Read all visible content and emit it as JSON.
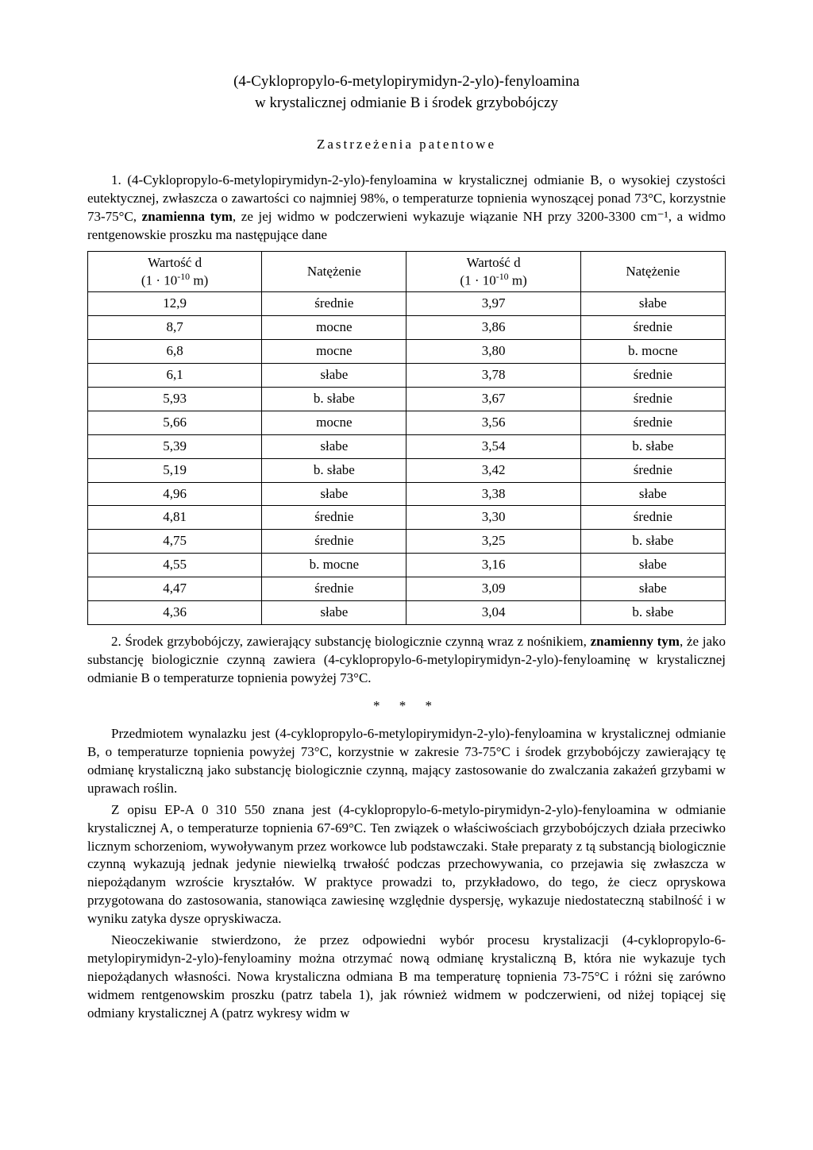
{
  "title_line1": "(4-Cyklopropylo-6-metylopirymidyn-2-ylo)-fenyloamina",
  "title_line2": "w krystalicznej odmianie B i środek grzybobójczy",
  "claims_header": "Zastrzeżenia patentowe",
  "claim1_part1": "1. (4-Cyklopropylo-6-metylopirymidyn-2-ylo)-fenyloamina w krystalicznej odmianie B, o wysokiej czystości eutektycznej, zwłaszcza o zawartości co najmniej 98%, o temperaturze topnienia wynoszącej ponad 73°C, korzystnie 73-75°C, ",
  "claim1_bold": "znamienna tym",
  "claim1_part2": ", ze jej widmo w podczerwieni wykazuje wiązanie NH przy 3200-3300 cm⁻¹, a widmo rentgenowskie proszku ma następujące dane",
  "table": {
    "header_col1": "Wartość d\n(1 · 10⁻¹⁰ m)",
    "header_col2": "Natężenie",
    "header_col3": "Wartość d\n(1 · 10⁻¹⁰ m)",
    "header_col4": "Natężenie",
    "rows": [
      [
        "12,9",
        "średnie",
        "3,97",
        "słabe"
      ],
      [
        "8,7",
        "mocne",
        "3,86",
        "średnie"
      ],
      [
        "6,8",
        "mocne",
        "3,80",
        "b. mocne"
      ],
      [
        "6,1",
        "słabe",
        "3,78",
        "średnie"
      ],
      [
        "5,93",
        "b. słabe",
        "3,67",
        "średnie"
      ],
      [
        "5,66",
        "mocne",
        "3,56",
        "średnie"
      ],
      [
        "5,39",
        "słabe",
        "3,54",
        "b. słabe"
      ],
      [
        "5,19",
        "b. słabe",
        "3,42",
        "średnie"
      ],
      [
        "4,96",
        "słabe",
        "3,38",
        "słabe"
      ],
      [
        "4,81",
        "średnie",
        "3,30",
        "średnie"
      ],
      [
        "4,75",
        "średnie",
        "3,25",
        "b. słabe"
      ],
      [
        "4,55",
        "b. mocne",
        "3,16",
        "słabe"
      ],
      [
        "4,47",
        "średnie",
        "3,09",
        "słabe"
      ],
      [
        "4,36",
        "słabe",
        "3,04",
        "b. słabe"
      ]
    ]
  },
  "claim2_part1": "2. Środek grzybobójczy, zawierający substancję biologicznie czynną wraz z nośnikiem, ",
  "claim2_bold": "znamienny tym",
  "claim2_part2": ", że jako substancję biologicznie czynną zawiera (4-cyklopropylo-6-metylopirymidyn-2-ylo)-fenyloaminę w krystalicznej odmianie B o temperaturze topnienia powyżej 73°C.",
  "separator": "* * *",
  "body_p1": "Przedmiotem wynalazku jest (4-cyklopropylo-6-metylopirymidyn-2-ylo)-fenyloamina w krystalicznej odmianie B, o temperaturze topnienia powyżej 73°C, korzystnie w zakresie 73-75°C i środek grzybobójczy zawierający tę odmianę krystaliczną jako substancję biologicznie czynną, mający zastosowanie do zwalczania zakażeń grzybami w uprawach roślin.",
  "body_p2": "Z opisu EP-A 0 310 550 znana jest (4-cyklopropylo-6-metylo-pirymidyn-2-ylo)-fenyloamina w odmianie krystalicznej A, o temperaturze topnienia 67-69°C. Ten związek o właściwościach grzybobójczych działa przeciwko licznym schorzeniom, wywoływanym przez workowce lub podstawczaki. Stałe preparaty z tą substancją biologicznie czynną wykazują jednak jedynie niewielką trwałość podczas przechowywania, co przejawia się zwłaszcza w niepożądanym wzroście kryształów. W praktyce prowadzi to, przykładowo, do tego, że ciecz opryskowa przygotowana do zastosowania, stanowiąca zawiesinę względnie dyspersję, wykazuje niedostateczną stabilność i w wyniku zatyka dysze opryskiwacza.",
  "body_p3": "Nieoczekiwanie stwierdzono, że przez odpowiedni wybór procesu krystalizacji (4-cyklopropylo-6-metylopirymidyn-2-ylo)-fenyloaminy można otrzymać nową odmianę krystaliczną B, która nie wykazuje tych niepożądanych własności. Nowa krystaliczna odmiana B ma temperaturę topnienia 73-75°C i różni się zarówno widmem rentgenowskim proszku (patrz tabela 1), jak również widmem w podczerwieni, od niżej topiącej się odmiany krystalicznej A (patrz wykresy widm w"
}
